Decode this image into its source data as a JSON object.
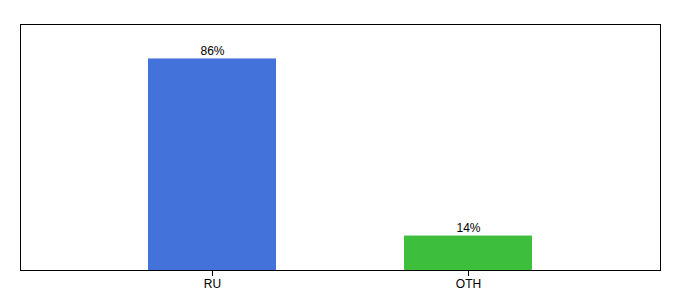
{
  "chart_data": {
    "type": "bar",
    "categories": [
      "RU",
      "OTH"
    ],
    "values": [
      86,
      14
    ],
    "value_labels": [
      "86%",
      "14%"
    ],
    "colors": [
      "#4472DB",
      "#3DBF3D"
    ],
    "data_labels": true,
    "ylim": [
      0,
      100
    ],
    "tick_labels": "x"
  }
}
